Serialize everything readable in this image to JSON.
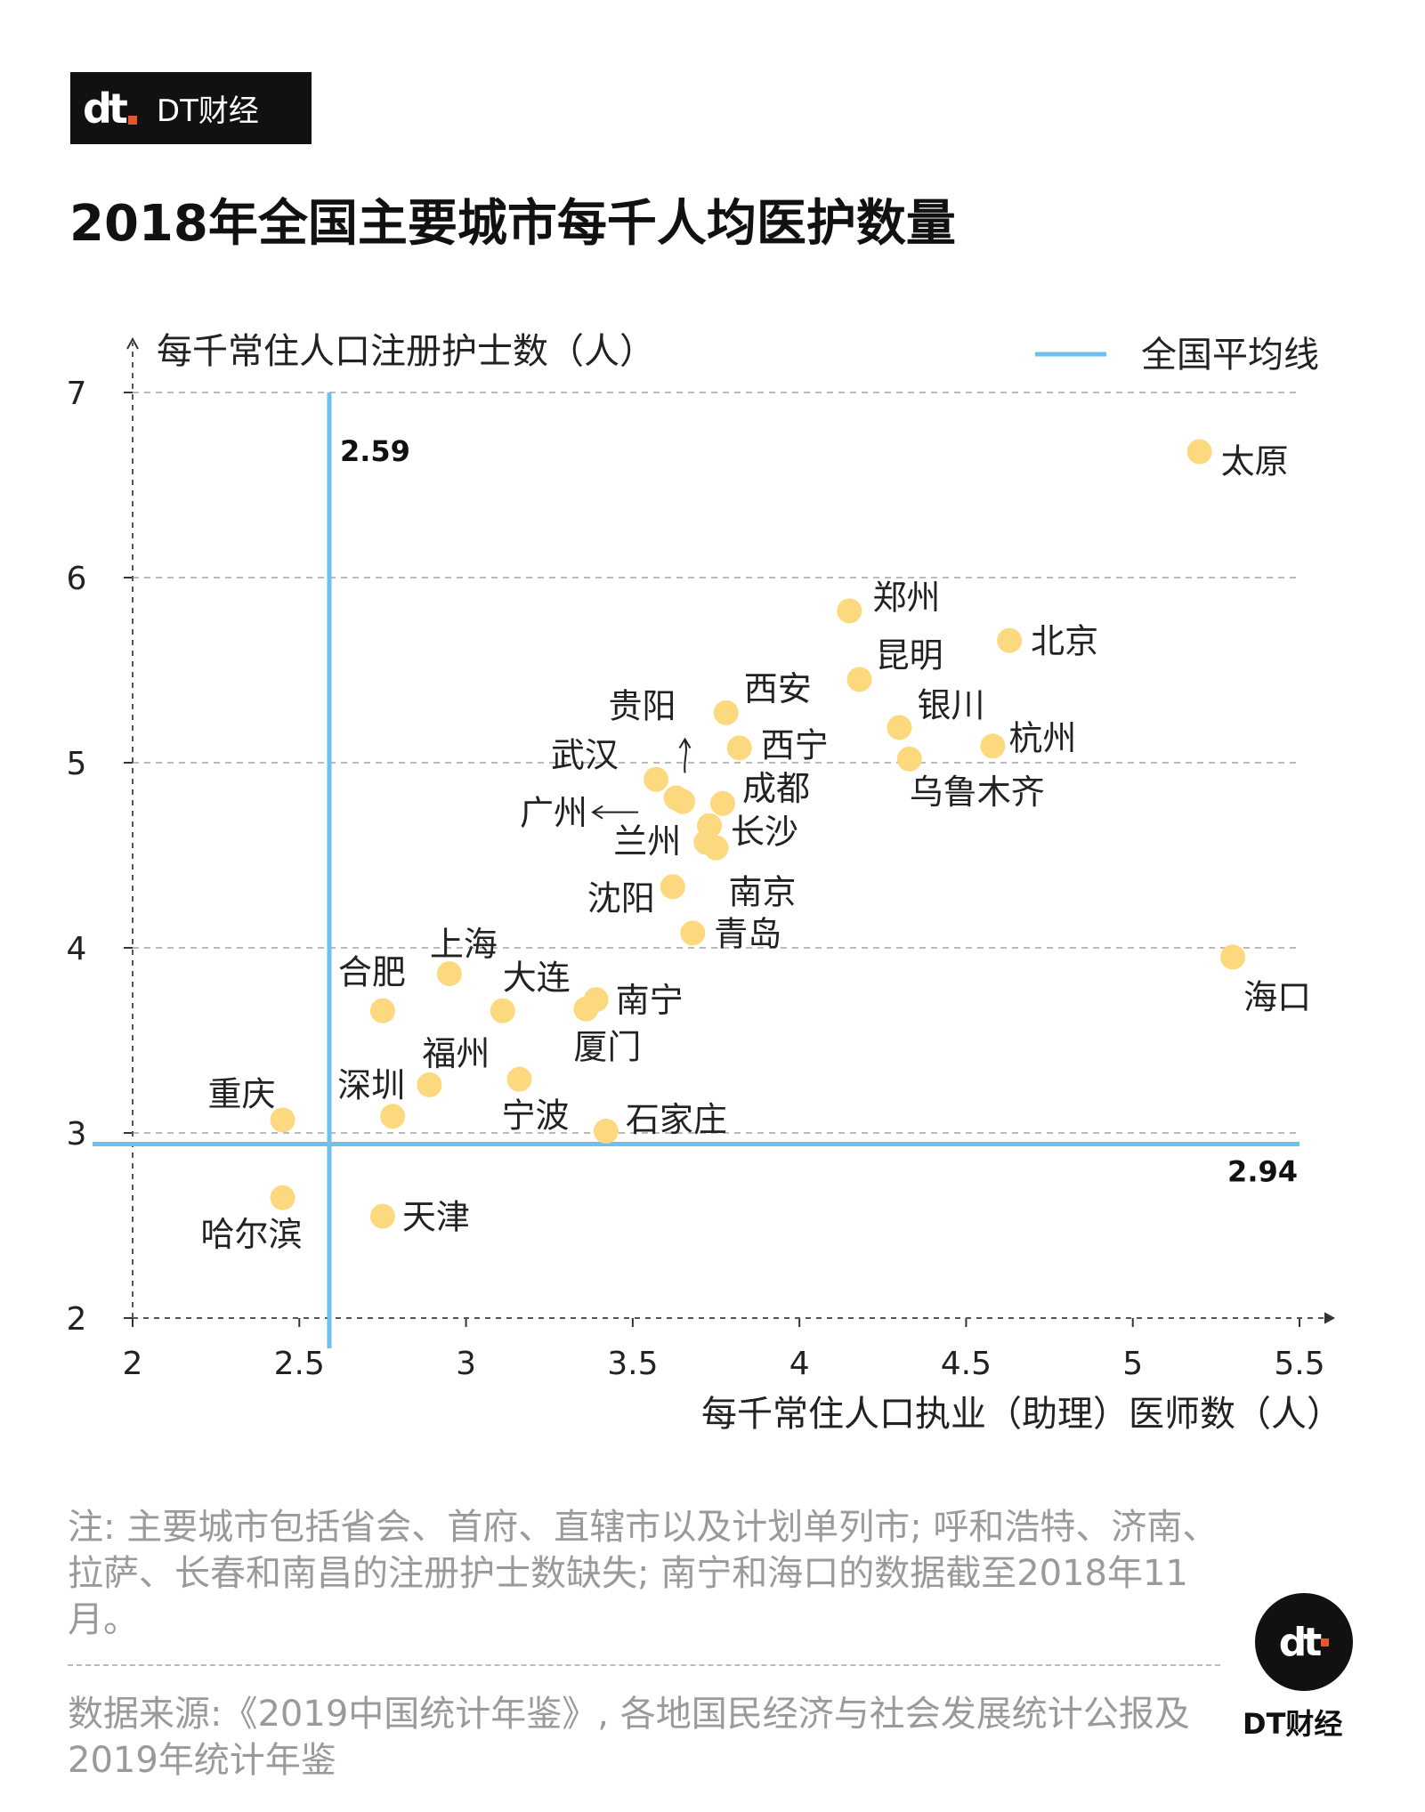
{
  "brand": {
    "name": "DT财经",
    "mark": "dt"
  },
  "title": "2018年全国主要城市每千人均医护数量",
  "chart_data": {
    "type": "scatter",
    "xlabel": "每千常住人口执业（助理）医师数（人）",
    "ylabel": "每千常住人口注册护士数（人）",
    "xlim": [
      2,
      5.5
    ],
    "ylim": [
      2,
      7
    ],
    "x_ticks": [
      "2",
      "2.5",
      "3",
      "3.5",
      "4",
      "4.5",
      "5",
      "5.5"
    ],
    "y_ticks": [
      "2",
      "3",
      "4",
      "5",
      "6",
      "7"
    ],
    "grid": "horizontal dashed",
    "legend": {
      "label": "全国平均线",
      "placement": "top-right"
    },
    "reference_lines": {
      "x_value": 2.59,
      "x_label": "2.59",
      "y_value": 2.94,
      "y_label": "2.94"
    },
    "arrows": [
      {
        "target": "贵阳",
        "direction": "up"
      },
      {
        "target": "广州",
        "direction": "left"
      }
    ],
    "colors": {
      "points": "#fcd97f",
      "average_line": "#6ec1ef",
      "grid": "#bbbbbb"
    },
    "points": [
      {
        "label": "太原",
        "x": 5.2,
        "y": 6.68
      },
      {
        "label": "郑州",
        "x": 4.15,
        "y": 5.82
      },
      {
        "label": "北京",
        "x": 4.63,
        "y": 5.66
      },
      {
        "label": "昆明",
        "x": 4.18,
        "y": 5.45
      },
      {
        "label": "银川",
        "x": 4.3,
        "y": 5.19
      },
      {
        "label": "杭州",
        "x": 4.58,
        "y": 5.09
      },
      {
        "label": "乌鲁木齐",
        "x": 4.33,
        "y": 5.02
      },
      {
        "label": "西安",
        "x": 3.78,
        "y": 5.27
      },
      {
        "label": "西宁",
        "x": 3.82,
        "y": 5.08
      },
      {
        "label": "贵阳",
        "x": 3.63,
        "y": 4.81
      },
      {
        "label": "武汉",
        "x": 3.57,
        "y": 4.91
      },
      {
        "label": "广州",
        "x": 3.65,
        "y": 4.79
      },
      {
        "label": "成都",
        "x": 3.77,
        "y": 4.78
      },
      {
        "label": "长沙",
        "x": 3.73,
        "y": 4.66
      },
      {
        "label": "兰州",
        "x": 3.72,
        "y": 4.57
      },
      {
        "label": "南京",
        "x": 3.75,
        "y": 4.54
      },
      {
        "label": "沈阳",
        "x": 3.62,
        "y": 4.33
      },
      {
        "label": "青岛",
        "x": 3.68,
        "y": 4.08
      },
      {
        "label": "海口",
        "x": 5.3,
        "y": 3.95
      },
      {
        "label": "上海",
        "x": 2.95,
        "y": 3.86
      },
      {
        "label": "南宁",
        "x": 3.39,
        "y": 3.72
      },
      {
        "label": "厦门",
        "x": 3.36,
        "y": 3.67
      },
      {
        "label": "合肥",
        "x": 2.75,
        "y": 3.66
      },
      {
        "label": "大连",
        "x": 3.11,
        "y": 3.66
      },
      {
        "label": "宁波",
        "x": 3.16,
        "y": 3.29
      },
      {
        "label": "福州",
        "x": 2.89,
        "y": 3.26
      },
      {
        "label": "深圳",
        "x": 2.78,
        "y": 3.09
      },
      {
        "label": "重庆",
        "x": 2.45,
        "y": 3.07
      },
      {
        "label": "石家庄",
        "x": 3.42,
        "y": 3.01
      },
      {
        "label": "哈尔滨",
        "x": 2.45,
        "y": 2.65
      },
      {
        "label": "天津",
        "x": 2.75,
        "y": 2.55
      }
    ]
  },
  "notes": "注: 主要城市包括省会、首府、直辖市以及计划单列市; 呼和浩特、济南、拉萨、长春和南昌的注册护士数缺失; 南宁和海口的数据截至2018年11月。",
  "source": "数据来源:《2019中国统计年鉴》, 各地国民经济与社会发展统计公报及2019年统计年鉴",
  "footer_logo": {
    "mark": "dt",
    "name": "DT财经"
  }
}
